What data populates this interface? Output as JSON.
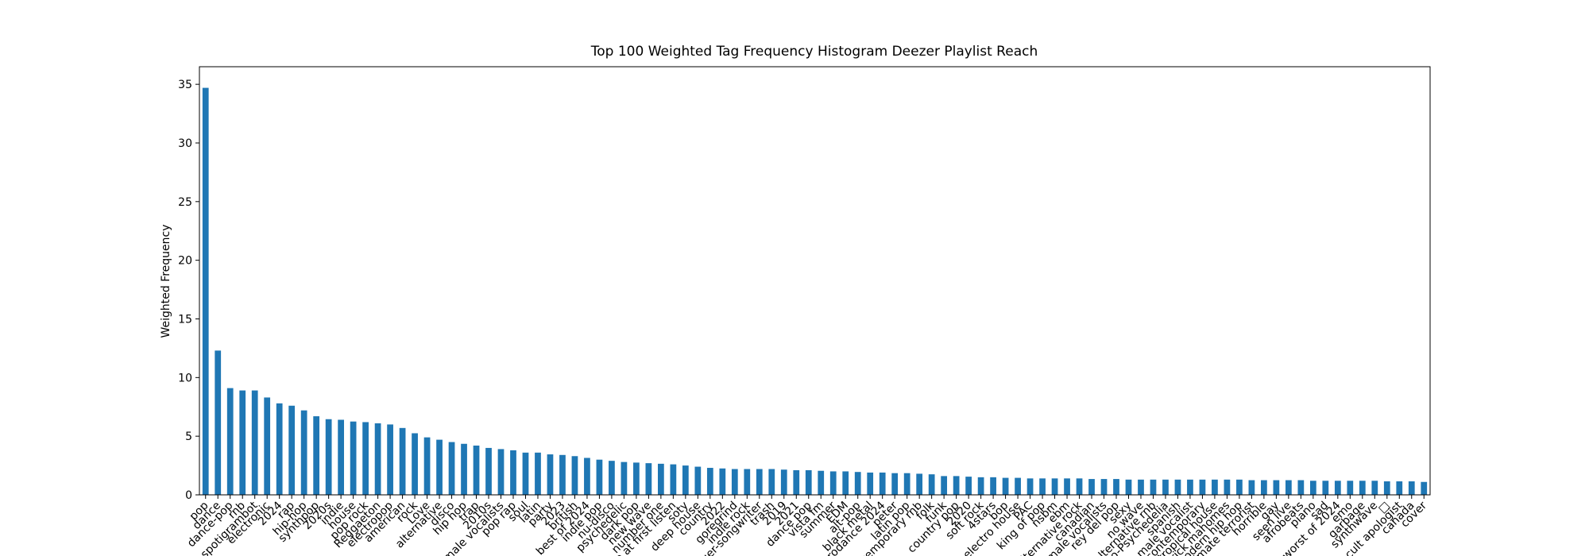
{
  "chart_data": {
    "type": "bar",
    "title": "Top 100 Weighted Tag Frequency Histogram Deezer Playlist Reach",
    "y_label": "Weighted Frequency",
    "color": "#1f77b4",
    "categories": [
      "pop",
      "dance",
      "dance-pop",
      "rnb",
      "spotigrambot",
      "electronic",
      "2024",
      "rap",
      "hip-hop",
      "synthpop",
      "2020s",
      "indie",
      "house",
      "pop rock",
      "Reggaeton",
      "electropop",
      "american",
      "rock",
      "Love",
      "alternative",
      "disco",
      "hip hop",
      "trap",
      "2010s",
      "female vocalists",
      "pop rap",
      "soul",
      "latin",
      "party",
      "2023",
      "british",
      "best of 2024",
      "indie pop",
      "nu-disco",
      "psychedelic",
      "dark pop",
      "new wave",
      "number one",
      "love at first listen",
      "soty",
      "deep house",
      "country",
      "2022",
      "goregrind",
      "indie rock",
      "singer-songwriter",
      "trash",
      "2019",
      "2021",
      "dance pop",
      "vista fm",
      "summer",
      "EDM",
      "alt-pop",
      "black metal",
      "eurodance 2024",
      "peter",
      "latin pop",
      "contemporary rnb",
      "folk",
      "funk",
      "country pop",
      "2020",
      "soft rock",
      "4stars",
      "bop",
      "electro house",
      "PAC",
      "king of pop",
      "nsbm",
      "ebm",
      "alternative rock",
      "canadian",
      "male vocalists",
      "rey del pop",
      "sexy",
      "no wave",
      "alternative rnb",
      "neo-Psychedelia",
      "spanish",
      "male vocalist",
      "contemporary",
      "tropical house",
      "patrick mahomes",
      "modern hip hop",
      "ultimate terrorist",
      "horrible",
      "gay",
      "seen live",
      "afrobeats",
      "piano",
      "sad",
      "worst of 2024",
      "emo",
      "garbage",
      "synthwave",
      "□",
      "cult apologist",
      "canada",
      "cover"
    ],
    "values": [
      34.7,
      12.3,
      9.1,
      8.9,
      8.9,
      8.3,
      7.8,
      7.6,
      7.2,
      6.7,
      6.45,
      6.4,
      6.25,
      6.2,
      6.1,
      6.0,
      5.7,
      5.25,
      4.9,
      4.7,
      4.5,
      4.35,
      4.2,
      4.0,
      3.9,
      3.8,
      3.6,
      3.6,
      3.45,
      3.4,
      3.3,
      3.15,
      3.0,
      2.9,
      2.8,
      2.75,
      2.7,
      2.65,
      2.6,
      2.5,
      2.4,
      2.3,
      2.25,
      2.2,
      2.2,
      2.2,
      2.2,
      2.15,
      2.1,
      2.1,
      2.05,
      2.0,
      2.0,
      1.95,
      1.9,
      1.9,
      1.85,
      1.85,
      1.8,
      1.75,
      1.6,
      1.6,
      1.55,
      1.5,
      1.5,
      1.45,
      1.45,
      1.4,
      1.4,
      1.4,
      1.4,
      1.4,
      1.35,
      1.35,
      1.35,
      1.3,
      1.3,
      1.3,
      1.3,
      1.3,
      1.3,
      1.3,
      1.3,
      1.3,
      1.3,
      1.25,
      1.25,
      1.25,
      1.25,
      1.25,
      1.2,
      1.2,
      1.2,
      1.2,
      1.2,
      1.2,
      1.15,
      1.15,
      1.15,
      1.1
    ],
    "ylim": [
      0,
      36.5
    ],
    "yticks": [
      0,
      5,
      10,
      15,
      20,
      25,
      30,
      35
    ]
  }
}
